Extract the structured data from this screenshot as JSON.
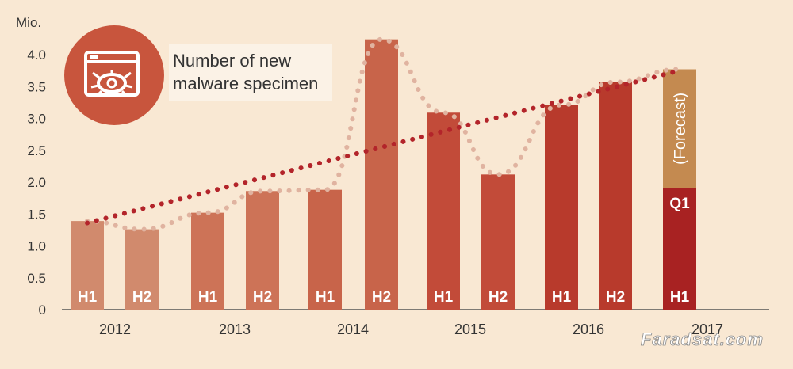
{
  "chart_data": {
    "type": "bar",
    "title": "",
    "y_unit": "Mio.",
    "ylim": [
      0,
      4.3
    ],
    "y_ticks": [
      "0",
      "0.5",
      "1.0",
      "1.5",
      "2.0",
      "2.5",
      "3.0",
      "3.5",
      "4.0"
    ],
    "y_tick_values": [
      0,
      0.5,
      1.0,
      1.5,
      2.0,
      2.5,
      3.0,
      3.5,
      4.0
    ],
    "years": [
      "2012",
      "2013",
      "2014",
      "2015",
      "2016",
      "2017"
    ],
    "bars": [
      {
        "year": "2012",
        "half": "H1",
        "value": 1.39,
        "color": "#d18a6d"
      },
      {
        "year": "2012",
        "half": "H2",
        "value": 1.26,
        "color": "#d18a6d"
      },
      {
        "year": "2013",
        "half": "H1",
        "value": 1.52,
        "color": "#cd7357"
      },
      {
        "year": "2013",
        "half": "H2",
        "value": 1.86,
        "color": "#cd7357"
      },
      {
        "year": "2014",
        "half": "H1",
        "value": 1.88,
        "color": "#c8644a"
      },
      {
        "year": "2014",
        "half": "H2",
        "value": 4.24,
        "color": "#c8644a"
      },
      {
        "year": "2015",
        "half": "H1",
        "value": 3.09,
        "color": "#c24b39"
      },
      {
        "year": "2015",
        "half": "H2",
        "value": 2.12,
        "color": "#c24b39"
      },
      {
        "year": "2016",
        "half": "H1",
        "value": 3.21,
        "color": "#b83a2c"
      },
      {
        "year": "2016",
        "half": "H2",
        "value": 3.57,
        "color": "#b83a2c"
      },
      {
        "year": "2017",
        "half": "H1",
        "value": 3.77,
        "color": "#a82222",
        "q1": 1.91,
        "q1_label": "Q1",
        "forecast_label": "(Forecast)",
        "forecast_color": "#c48a50"
      }
    ],
    "half_trend": {
      "style": "dotted",
      "color": "#e0b3a0",
      "values": [
        1.39,
        1.26,
        1.52,
        1.86,
        1.88,
        4.24,
        3.09,
        2.12,
        3.21,
        3.57,
        3.77
      ]
    },
    "linear_trend": {
      "style": "dotted",
      "color": "#b3242a",
      "from": 1.36,
      "to": 3.75
    },
    "legend": {
      "line1": "Number of new",
      "line2": "malware specimen",
      "icon": "malware-bug-window-icon",
      "icon_color": "#c8553d"
    },
    "grid": false
  },
  "watermark": "Faradsat.com",
  "colors": {
    "background": "#f9e8d3",
    "axis": "#555555"
  }
}
